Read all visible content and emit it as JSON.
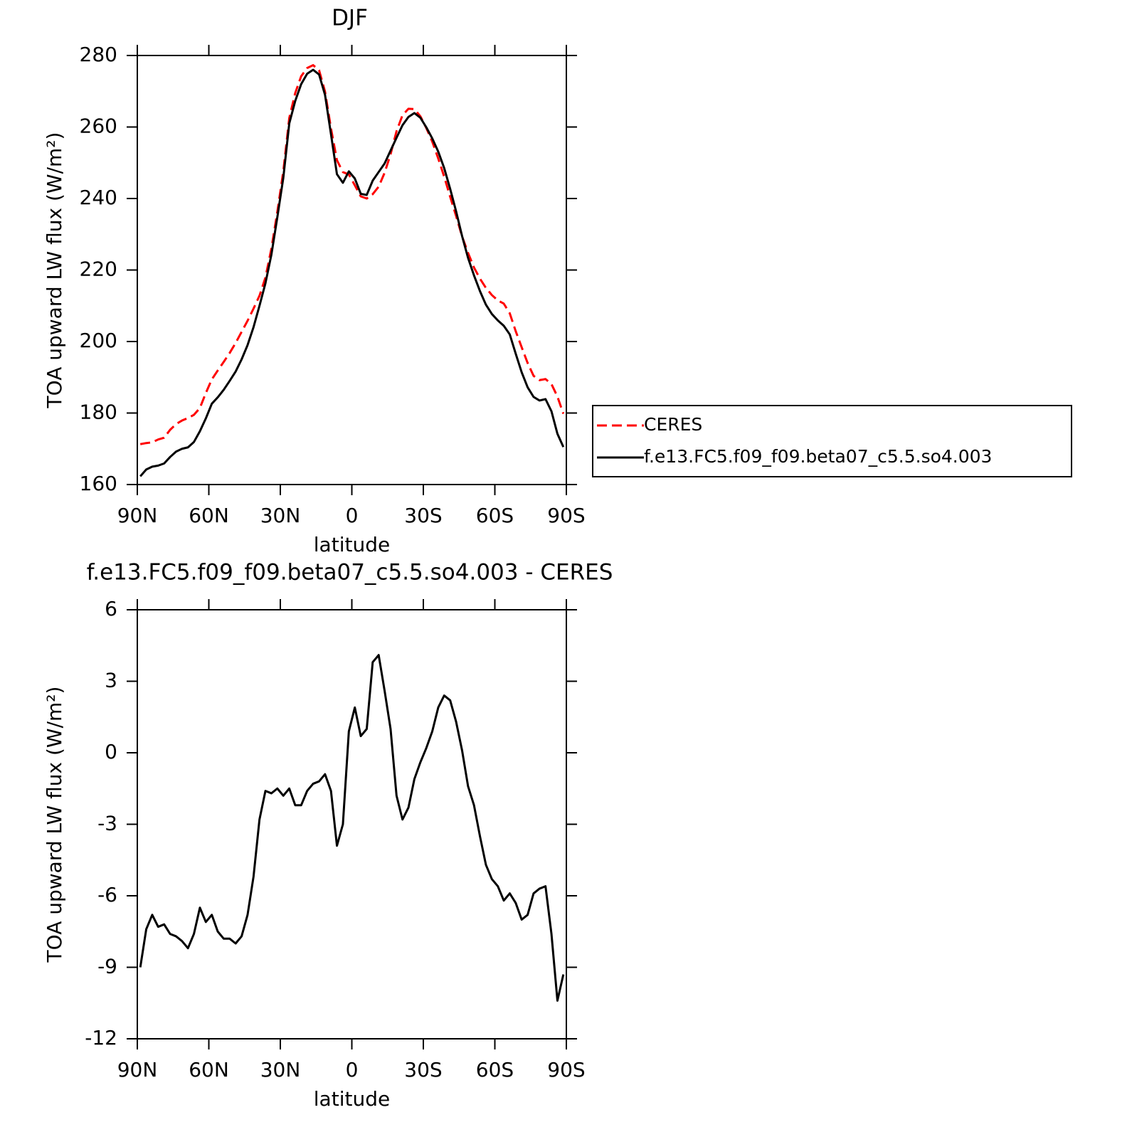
{
  "chart_data": [
    {
      "type": "line",
      "title": "DJF",
      "x_label": "latitude",
      "y_label": "TOA upward LW flux (W/m²)",
      "xlim": [
        90,
        -90
      ],
      "xticks": [
        {
          "value": 90,
          "label": "90N"
        },
        {
          "value": 60,
          "label": "60N"
        },
        {
          "value": 30,
          "label": "30N"
        },
        0,
        {
          "value": -30,
          "label": "30S"
        },
        {
          "value": -60,
          "label": "60S"
        },
        {
          "value": -90,
          "label": "90S"
        }
      ],
      "ylim": [
        160,
        280
      ],
      "yticks": [
        160,
        180,
        200,
        220,
        240,
        260,
        280
      ],
      "legend": "right",
      "x": [
        88.75,
        86.25,
        83.75,
        81.25,
        78.75,
        76.25,
        73.75,
        71.25,
        68.75,
        66.25,
        63.75,
        61.25,
        58.75,
        56.25,
        53.75,
        51.25,
        48.75,
        46.25,
        43.75,
        41.25,
        38.75,
        36.25,
        33.75,
        31.25,
        28.75,
        26.25,
        23.75,
        21.25,
        18.75,
        16.25,
        13.75,
        11.25,
        8.75,
        6.25,
        3.75,
        1.25,
        -1.25,
        -3.75,
        -6.25,
        -8.75,
        -11.25,
        -13.75,
        -16.25,
        -18.75,
        -21.25,
        -23.75,
        -26.25,
        -28.75,
        -31.25,
        -33.75,
        -36.25,
        -38.75,
        -41.25,
        -43.75,
        -46.25,
        -48.75,
        -51.25,
        -53.75,
        -56.25,
        -58.75,
        -61.25,
        -63.75,
        -66.25,
        -68.75,
        -71.25,
        -73.75,
        -76.25,
        -78.75,
        -81.25,
        -83.75,
        -86.25,
        -88.75
      ],
      "series": [
        {
          "name": "CERES",
          "color": "#ff0000",
          "dashed": true,
          "values": [
            171.3,
            171.6,
            171.8,
            172.6,
            173.1,
            175.3,
            176.9,
            177.9,
            178.6,
            179.5,
            181.4,
            185.6,
            189.4,
            191.9,
            194.3,
            196.8,
            199.6,
            202.7,
            205.8,
            209.2,
            212.8,
            217.9,
            226.0,
            236.3,
            247.6,
            262.5,
            269.5,
            274.2,
            276.5,
            277.3,
            275.9,
            269.9,
            259.6,
            250.7,
            247.4,
            246.7,
            243.7,
            240.6,
            240.0,
            241.2,
            243.3,
            247.2,
            252.4,
            258.8,
            263.3,
            265.1,
            265.0,
            263.0,
            259.7,
            255.9,
            251.2,
            246.1,
            240.5,
            235.1,
            229.4,
            224.8,
            220.7,
            217.6,
            215.0,
            213.0,
            211.5,
            210.6,
            207.9,
            202.9,
            198.4,
            194.0,
            190.4,
            189.2,
            189.5,
            188.1,
            184.6,
            179.8
          ]
        },
        {
          "name": "f.e13.FC5.f09_f09.beta07_c5.5.so4.003",
          "color": "#000000",
          "dashed": false,
          "values": [
            162.3,
            164.2,
            165.0,
            165.3,
            165.9,
            167.7,
            169.2,
            170.0,
            170.4,
            171.9,
            174.9,
            178.5,
            182.6,
            184.4,
            186.5,
            189.0,
            191.6,
            195.0,
            199.0,
            204.0,
            210.0,
            216.3,
            224.3,
            234.8,
            245.8,
            261.0,
            267.3,
            272.0,
            274.9,
            276.0,
            274.7,
            269.0,
            258.0,
            246.8,
            244.4,
            247.6,
            245.6,
            241.3,
            241.0,
            245.0,
            247.4,
            249.8,
            253.4,
            257.0,
            260.5,
            262.8,
            263.9,
            262.6,
            259.9,
            256.8,
            253.1,
            248.5,
            242.7,
            236.4,
            229.5,
            223.4,
            218.5,
            214.1,
            210.3,
            207.7,
            205.9,
            204.4,
            202.0,
            196.6,
            191.4,
            187.2,
            184.5,
            183.5,
            183.9,
            180.5,
            174.2,
            170.5
          ]
        }
      ]
    },
    {
      "type": "line",
      "title": "f.e13.FC5.f09_f09.beta07_c5.5.so4.003 - CERES",
      "x_label": "latitude",
      "y_label": "TOA upward LW flux (W/m²)",
      "xlim": [
        90,
        -90
      ],
      "xticks": [
        {
          "value": 90,
          "label": "90N"
        },
        {
          "value": 60,
          "label": "60N"
        },
        {
          "value": 30,
          "label": "30N"
        },
        0,
        {
          "value": -30,
          "label": "30S"
        },
        {
          "value": -60,
          "label": "60S"
        },
        {
          "value": -90,
          "label": "90S"
        }
      ],
      "ylim": [
        -12,
        6
      ],
      "yticks": [
        -12,
        -9,
        -6,
        -3,
        0,
        3,
        6
      ],
      "x": [
        88.75,
        86.25,
        83.75,
        81.25,
        78.75,
        76.25,
        73.75,
        71.25,
        68.75,
        66.25,
        63.75,
        61.25,
        58.75,
        56.25,
        53.75,
        51.25,
        48.75,
        46.25,
        43.75,
        41.25,
        38.75,
        36.25,
        33.75,
        31.25,
        28.75,
        26.25,
        23.75,
        21.25,
        18.75,
        16.25,
        13.75,
        11.25,
        8.75,
        6.25,
        3.75,
        1.25,
        -1.25,
        -3.75,
        -6.25,
        -8.75,
        -11.25,
        -13.75,
        -16.25,
        -18.75,
        -21.25,
        -23.75,
        -26.25,
        -28.75,
        -31.25,
        -33.75,
        -36.25,
        -38.75,
        -41.25,
        -43.75,
        -46.25,
        -48.75,
        -51.25,
        -53.75,
        -56.25,
        -58.75,
        -61.25,
        -63.75,
        -66.25,
        -68.75,
        -71.25,
        -73.75,
        -76.25,
        -78.75,
        -81.25,
        -83.75,
        -86.25,
        -88.75
      ],
      "series": [
        {
          "color": "#000000",
          "dashed": false,
          "values": [
            -9.0,
            -7.4,
            -6.8,
            -7.3,
            -7.2,
            -7.6,
            -7.7,
            -7.9,
            -8.2,
            -7.6,
            -6.5,
            -7.1,
            -6.8,
            -7.5,
            -7.8,
            -7.8,
            -8.0,
            -7.7,
            -6.8,
            -5.2,
            -2.8,
            -1.6,
            -1.7,
            -1.5,
            -1.8,
            -1.5,
            -2.2,
            -2.2,
            -1.6,
            -1.3,
            -1.2,
            -0.9,
            -1.6,
            -3.9,
            -3.0,
            0.9,
            1.9,
            0.7,
            1.0,
            3.8,
            4.1,
            2.6,
            1.0,
            -1.8,
            -2.8,
            -2.3,
            -1.1,
            -0.4,
            0.2,
            0.9,
            1.9,
            2.4,
            2.2,
            1.3,
            0.1,
            -1.4,
            -2.2,
            -3.5,
            -4.7,
            -5.3,
            -5.6,
            -6.2,
            -5.9,
            -6.3,
            -7.0,
            -6.8,
            -5.9,
            -5.7,
            -5.6,
            -7.6,
            -10.4,
            -9.3
          ]
        }
      ]
    }
  ]
}
